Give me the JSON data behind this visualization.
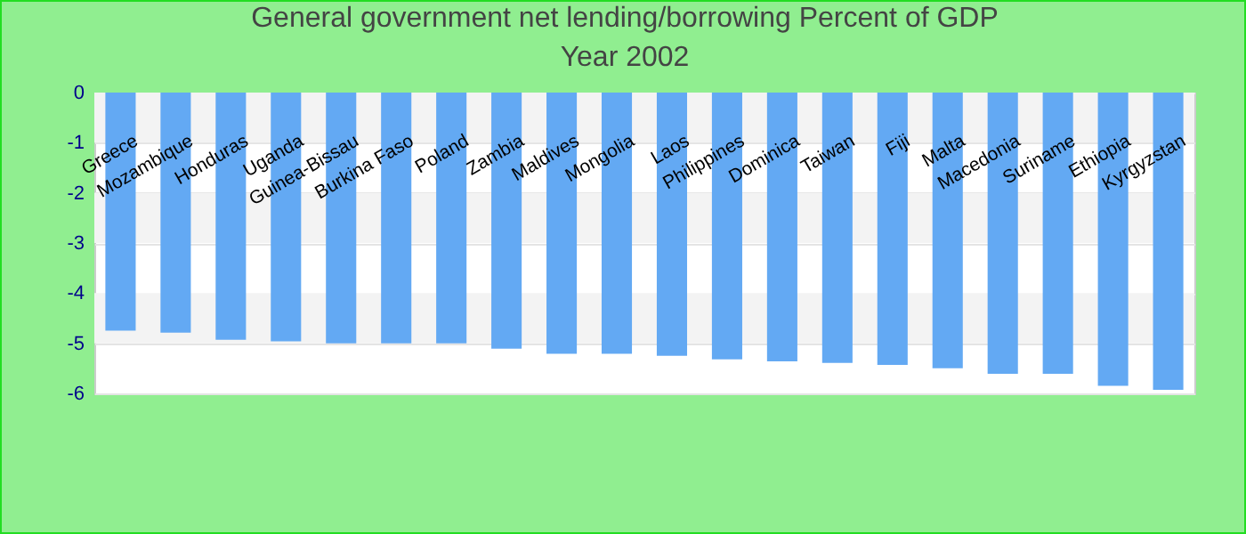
{
  "chart_data": {
    "type": "bar",
    "title": "General government net lending/borrowing  Percent of GDP",
    "subtitle": "Year 2002",
    "categories": [
      "Greece",
      "Mozambique",
      "Honduras",
      "Uganda",
      "Guinea-Bissau",
      "Burkina Faso",
      "Poland",
      "Zambia",
      "Maldives",
      "Mongolia",
      "Laos",
      "Philippines",
      "Dominica",
      "Taiwan",
      "Fiji",
      "Malta",
      "Macedonia",
      "Suriname",
      "Ethiopia",
      "Kyrgyzstan"
    ],
    "values": [
      -4.75,
      -4.79,
      -4.93,
      -4.96,
      -5.0,
      -5.0,
      -5.0,
      -5.11,
      -5.21,
      -5.21,
      -5.25,
      -5.32,
      -5.36,
      -5.39,
      -5.43,
      -5.5,
      -5.61,
      -5.61,
      -5.85,
      -5.93
    ],
    "color": "#63a9f3",
    "ylim": [
      -6,
      0
    ],
    "yticks": [
      0,
      -1,
      -2,
      -3,
      -4,
      -5,
      -6
    ],
    "grid": "y"
  }
}
